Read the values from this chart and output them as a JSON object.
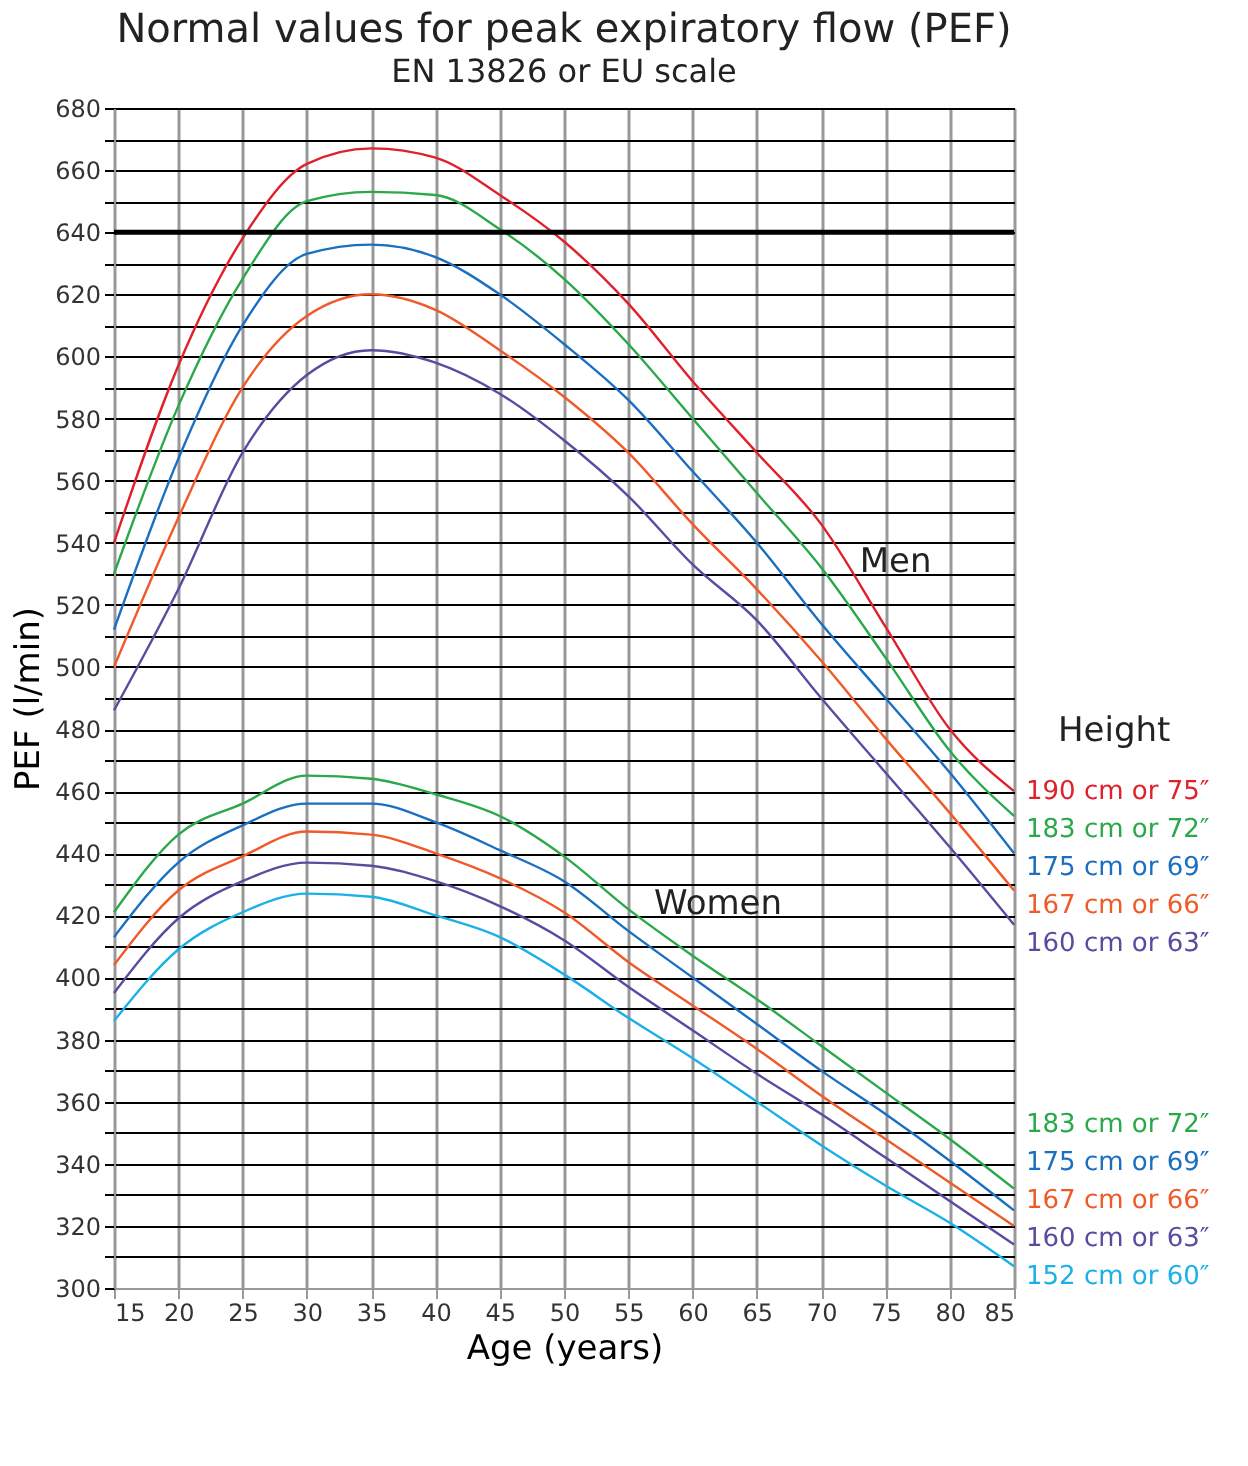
{
  "chart_data": {
    "type": "line",
    "title": "Normal values for peak expiratory flow (PEF)",
    "subtitle": "EN 13826 or EU scale",
    "xlabel": "Age (years)",
    "ylabel": "PEF (l/min)",
    "legend_title": "Height",
    "x": [
      15,
      20,
      25,
      30,
      35,
      40,
      45,
      50,
      55,
      60,
      65,
      70,
      75,
      80,
      85
    ],
    "series": [
      {
        "name": "190 cm or 75″",
        "color": "#e0202a",
        "values": [
          540,
          597,
          638,
          662,
          667,
          664,
          652,
          637,
          617,
          592,
          569,
          546,
          513,
          480,
          460
        ]
      },
      {
        "name": "183 cm or 72″",
        "color": "#2aa84a",
        "values": [
          530,
          584,
          625,
          650,
          653,
          652,
          641,
          625,
          604,
          580,
          556,
          532,
          503,
          473,
          452
        ]
      },
      {
        "name": "175 cm or 69″",
        "color": "#1a6fc0",
        "values": [
          512,
          567,
          610,
          633,
          636,
          632,
          620,
          604,
          586,
          563,
          540,
          514,
          490,
          466,
          440
        ]
      },
      {
        "name": "167 cm or 66″",
        "color": "#f05a28",
        "values": [
          500,
          548,
          590,
          613,
          620,
          615,
          602,
          587,
          569,
          546,
          525,
          502,
          477,
          453,
          428
        ]
      },
      {
        "name": "160 cm or 63″",
        "color": "#5b4ba0",
        "values": [
          486,
          525,
          569,
          594,
          602,
          598,
          588,
          573,
          555,
          533,
          515,
          490,
          466,
          442,
          417
        ]
      },
      {
        "name": "183 cm or 72″",
        "color": "#2aa84a",
        "values": [
          421,
          446,
          456,
          465,
          464,
          459,
          452,
          439,
          422,
          407,
          393,
          378,
          363,
          348,
          332
        ]
      },
      {
        "name": "175 cm or 69″",
        "color": "#1a6fc0",
        "values": [
          413,
          437,
          449,
          456,
          456,
          450,
          441,
          431,
          415,
          400,
          385,
          370,
          356,
          341,
          325
        ]
      },
      {
        "name": "167 cm or 66″",
        "color": "#f05a28",
        "values": [
          404,
          428,
          439,
          447,
          446,
          440,
          432,
          421,
          405,
          391,
          377,
          362,
          348,
          334,
          320
        ]
      },
      {
        "name": "160 cm or 63″",
        "color": "#5b4ba0",
        "values": [
          395,
          419,
          431,
          437,
          436,
          431,
          423,
          412,
          397,
          383,
          369,
          356,
          342,
          328,
          314
        ]
      },
      {
        "name": "152 cm or 60″",
        "color": "#1ab0e8",
        "values": [
          386,
          409,
          421,
          427,
          426,
          420,
          413,
          401,
          387,
          374,
          360,
          346,
          333,
          321,
          307
        ]
      }
    ],
    "xlim": [
      15,
      85
    ],
    "xticks": [
      15,
      20,
      25,
      30,
      35,
      40,
      45,
      50,
      55,
      60,
      65,
      70,
      75,
      80,
      85
    ],
    "ylim": [
      300,
      680
    ],
    "yticks": [
      300,
      {
        "value": 310,
        "label": null
      },
      320,
      {
        "value": 330,
        "label": null
      },
      340,
      {
        "value": 350,
        "label": null
      },
      360,
      {
        "value": 370,
        "label": null
      },
      380,
      {
        "value": 390,
        "label": null
      },
      400,
      {
        "value": 410,
        "label": null
      },
      420,
      {
        "value": 430,
        "label": null
      },
      440,
      {
        "value": 450,
        "label": null
      },
      460,
      {
        "value": 470,
        "label": null
      },
      480,
      {
        "value": 490,
        "label": null
      },
      500,
      {
        "value": 510,
        "label": null
      },
      520,
      {
        "value": 530,
        "label": null
      },
      540,
      {
        "value": 550,
        "label": null
      },
      560,
      {
        "value": 570,
        "label": null
      },
      580,
      {
        "value": 590,
        "label": null
      },
      600,
      {
        "value": 610,
        "label": null
      },
      620,
      {
        "value": 630,
        "label": null
      },
      640,
      {
        "value": 650,
        "label": null
      },
      660,
      {
        "value": 670,
        "label": null
      },
      680
    ],
    "ref_lines": [
      {
        "axis": "y",
        "value": 640,
        "label": null,
        "color": "#000000"
      }
    ],
    "annotations": [
      {
        "text": "Men",
        "x": 73,
        "y": 526
      },
      {
        "text": "Women",
        "x": 57,
        "y": 416
      }
    ],
    "grid": true,
    "legend": "right",
    "marker": "none",
    "line_style": "solid"
  }
}
